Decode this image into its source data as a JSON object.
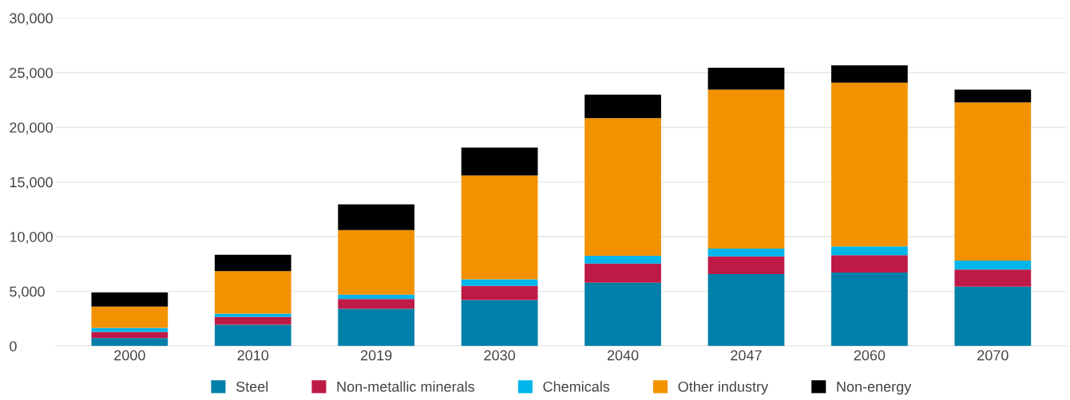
{
  "chart_data": {
    "type": "bar",
    "stacked": true,
    "categories": [
      "2000",
      "2010",
      "2019",
      "2030",
      "2040",
      "2047",
      "2060",
      "2070"
    ],
    "series": [
      {
        "name": "Steel",
        "color": "#0080a8",
        "values": [
          720,
          1950,
          3400,
          4200,
          5800,
          6580,
          6730,
          5430
        ]
      },
      {
        "name": "Non-metallic minerals",
        "color": "#be1a47",
        "values": [
          580,
          700,
          900,
          1300,
          1750,
          1620,
          1580,
          1570
        ]
      },
      {
        "name": "Chemicals",
        "color": "#00b5e9",
        "values": [
          350,
          300,
          400,
          600,
          700,
          700,
          790,
          820
        ]
      },
      {
        "name": "Other industry",
        "color": "#f39200",
        "values": [
          1950,
          3900,
          5900,
          9500,
          12600,
          14550,
          14980,
          14470
        ]
      },
      {
        "name": "Non-energy",
        "color": "#000000",
        "values": [
          1300,
          1500,
          2350,
          2550,
          2150,
          2000,
          1590,
          1160
        ]
      }
    ],
    "ylim": [
      0,
      30000
    ],
    "yticks": [
      {
        "value": 0,
        "label": "0"
      },
      {
        "value": 5000,
        "label": "5,000"
      },
      {
        "value": 10000,
        "label": "10,000"
      },
      {
        "value": 15000,
        "label": "15,000"
      },
      {
        "value": 20000,
        "label": "20,000"
      },
      {
        "value": 25000,
        "label": "25,000"
      },
      {
        "value": 30000,
        "label": "30,000"
      }
    ],
    "grid": "y",
    "legend": "bottom"
  }
}
